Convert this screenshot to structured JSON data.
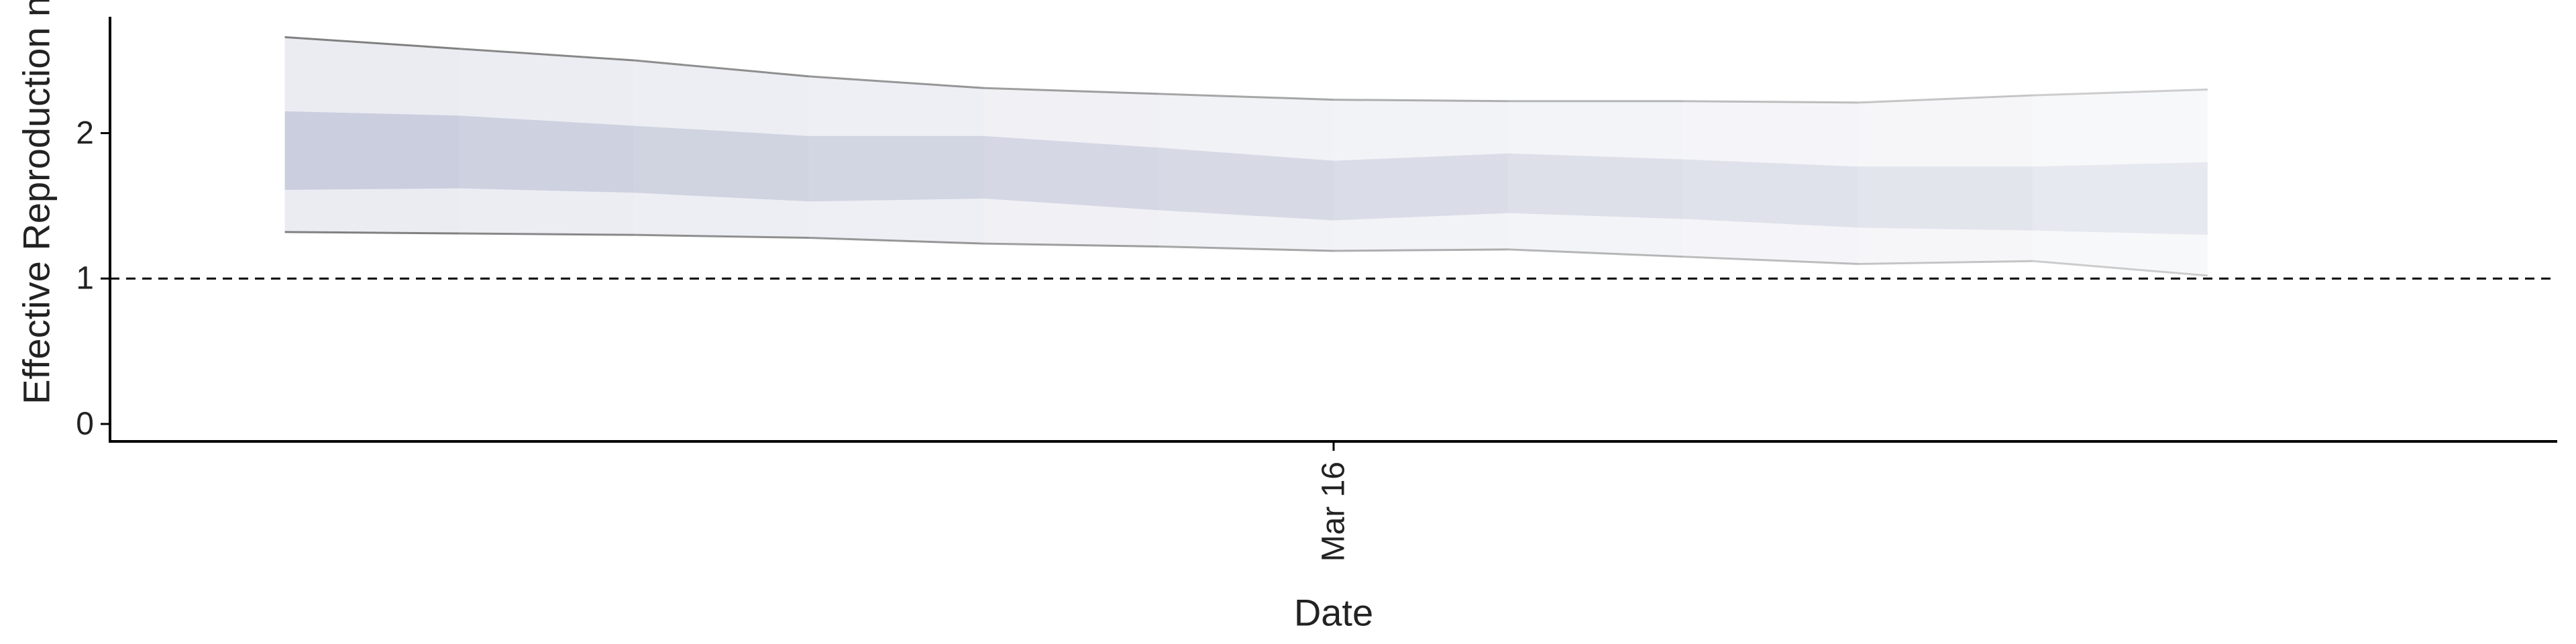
{
  "chart_data": {
    "type": "area",
    "title": "",
    "xlabel": "Date",
    "ylabel": "Effective Reproduction no.",
    "x_ticks": [
      {
        "date": "2020-03-16",
        "label": "Mar 16"
      }
    ],
    "x_range": [
      "2020-03-09",
      "2020-03-23"
    ],
    "ylim": [
      -0.12,
      2.8
    ],
    "y_ticks": [
      0,
      1,
      2
    ],
    "reference_line": {
      "y": 1,
      "style": "dashed"
    },
    "grid": false,
    "legend": "none",
    "series": [
      {
        "x": [
          "2020-03-10",
          "2020-03-11",
          "2020-03-12",
          "2020-03-13",
          "2020-03-14",
          "2020-03-15",
          "2020-03-16",
          "2020-03-17",
          "2020-03-18",
          "2020-03-19",
          "2020-03-20",
          "2020-03-21"
        ],
        "lower_90": [
          1.32,
          1.31,
          1.3,
          1.28,
          1.24,
          1.22,
          1.19,
          1.2,
          1.15,
          1.1,
          1.12,
          1.02
        ],
        "lower_50": [
          1.61,
          1.62,
          1.59,
          1.53,
          1.55,
          1.47,
          1.4,
          1.45,
          1.41,
          1.35,
          1.33,
          1.3
        ],
        "upper_50": [
          2.15,
          2.12,
          2.05,
          1.98,
          1.98,
          1.9,
          1.81,
          1.86,
          1.82,
          1.77,
          1.77,
          1.8
        ],
        "upper_90": [
          2.66,
          2.58,
          2.5,
          2.39,
          2.31,
          2.27,
          2.23,
          2.22,
          2.22,
          2.21,
          2.26,
          2.3
        ]
      }
    ],
    "colors": {
      "band_50": "#c5c9da",
      "band_90": "#e7e8f0",
      "bound_line": "#7a7a7a",
      "axis": "#000000",
      "reference_line": "#000000"
    }
  }
}
